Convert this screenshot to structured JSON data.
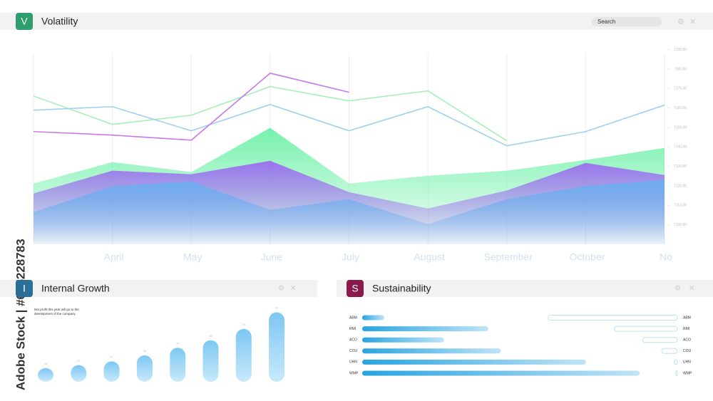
{
  "watermark": "Adobe Stock | #605228783",
  "search": "Search",
  "chart_data": [
    {
      "type": "area-line",
      "title": "Volatility",
      "icon": "V",
      "icon_color": "#2e9e6e",
      "categories": [
        null,
        "April",
        "May",
        "June",
        "July",
        "August",
        "September",
        "October",
        "No"
      ],
      "ylim": [
        7090,
        7195
      ],
      "yticks": [
        {
          "value": 7190,
          "label": "7190.00"
        },
        {
          "value": 7180,
          "label": "7180.00"
        },
        {
          "value": 7170,
          "label": "7170.00"
        },
        {
          "value": 7160,
          "label": "7160.00"
        },
        {
          "value": 7150,
          "label": "7150.00"
        },
        {
          "value": 7140,
          "label": "7140.00"
        },
        {
          "value": 7130,
          "label": "7130.00"
        },
        {
          "value": 7120,
          "label": "7120.00"
        },
        {
          "value": 7110,
          "label": "7110.00"
        },
        {
          "value": 7100,
          "label": "7100.00"
        }
      ],
      "grid": true,
      "series": [
        {
          "style": "area",
          "color": "#6ef0a8",
          "values": [
            7121.2,
            7132.2,
            7127.1,
            7149.8,
            7121.2,
            7125.2,
            7127.8,
            7133.3,
            7139.5
          ]
        },
        {
          "style": "area",
          "color": "#9b6cf0",
          "values": [
            7116.1,
            7127.8,
            7126.0,
            7132.9,
            7116.8,
            7108.4,
            7117.6,
            7131.8,
            7125.6
          ]
        },
        {
          "style": "area",
          "color": "#6aaef0",
          "values": [
            7106.6,
            7119.8,
            7122.3,
            7107.7,
            7113.2,
            7100.4,
            7113.2,
            7119.8,
            7123.1
          ]
        },
        {
          "style": "line",
          "color": "#a6f0b8",
          "values": [
            7166.2,
            7151.6,
            7156.3,
            7171.0,
            7163.7,
            7168.8,
            7143.2,
            null,
            null
          ]
        },
        {
          "style": "line",
          "color": "#9fd0f0",
          "values": [
            7158.9,
            7160.7,
            7148.3,
            7161.8,
            7148.3,
            7160.7,
            7140.6,
            7147.9,
            7161.5
          ]
        },
        {
          "style": "line",
          "color": "#c77ae8",
          "values": [
            7147.9,
            7146.1,
            7143.5,
            7177.9,
            7168.1,
            null,
            null,
            null,
            null
          ]
        }
      ]
    },
    {
      "type": "bar",
      "title": "Internal Growth",
      "icon": "I",
      "icon_color": "#2a6f96",
      "subtitle": "Net profit this year will go to the development of the company",
      "ylim": [
        0,
        100
      ],
      "color": "#8fd0f5",
      "values": [
        18,
        22,
        27,
        35,
        45,
        55,
        70,
        92
      ]
    },
    {
      "type": "hbar",
      "title": "Sustainability",
      "icon": "S",
      "icon_color": "#8a1a4e",
      "categories": [
        "ABM",
        "RMI",
        "ACO",
        "COU",
        "UHN",
        "WMP"
      ],
      "xlim": [
        0,
        100
      ],
      "series": [
        {
          "style": "bar",
          "color": "#29a3e0",
          "values": [
            7,
            40,
            26,
            44,
            71,
            88
          ]
        },
        {
          "style": "outline",
          "color": "#bfe0f0",
          "values": [
            41,
            20,
            11,
            5,
            1,
            0.5
          ]
        }
      ]
    }
  ]
}
